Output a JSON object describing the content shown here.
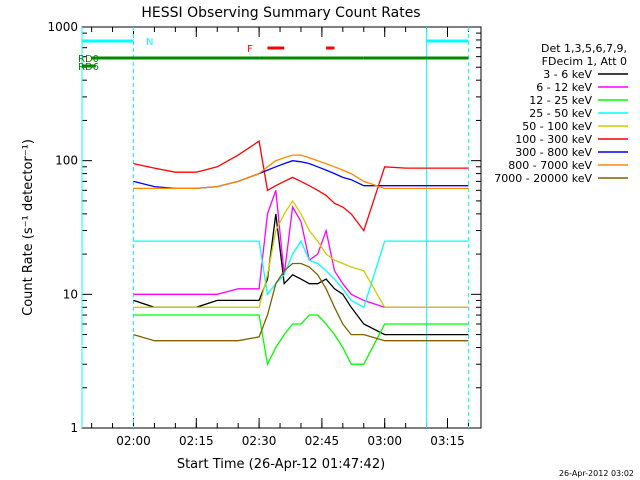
{
  "chart_data": {
    "type": "line",
    "title": "HESSI Observing Summary Count Rates",
    "xlabel": "Start Time (26-Apr-12 01:47:42)",
    "ylabel": "Count Rate (s⁻¹ detector⁻¹)",
    "yscale": "log",
    "ylim": [
      1,
      1000
    ],
    "xlim": [
      "01:47:42",
      "03:23:00"
    ],
    "x_ticks": [
      "02:00",
      "02:15",
      "02:30",
      "02:45",
      "03:00",
      "03:15"
    ],
    "y_ticks": [
      "1",
      "10",
      "100",
      "1000"
    ],
    "grid": false,
    "legend_position": "right",
    "legend_header": [
      "Det 1,3,5,6,7,9,",
      "FDecim 1, Att 0"
    ],
    "timestamp": "26-Apr-2012 03:02",
    "time_points": [
      "02:00",
      "02:05",
      "02:10",
      "02:15",
      "02:20",
      "02:25",
      "02:30",
      "02:32",
      "02:34",
      "02:36",
      "02:38",
      "02:40",
      "02:42",
      "02:44",
      "02:46",
      "02:48",
      "02:50",
      "02:52",
      "02:55",
      "03:00",
      "03:05",
      "03:10",
      "03:15",
      "03:20"
    ],
    "data_gaps": [
      [
        "01:47:42",
        "02:00"
      ],
      [
        "03:10",
        "03:20"
      ]
    ],
    "series": [
      {
        "name": "3 - 6 keV",
        "color": "#000000",
        "values": [
          9,
          8,
          8,
          8,
          9,
          9,
          9,
          13,
          40,
          12,
          14,
          13,
          12,
          12,
          13,
          11,
          10,
          8,
          6,
          5,
          5,
          5,
          5,
          5
        ]
      },
      {
        "name": "6 - 12 keV",
        "color": "#ff00ff",
        "values": [
          10,
          10,
          10,
          10,
          10,
          11,
          11,
          40,
          60,
          14,
          45,
          35,
          18,
          20,
          30,
          15,
          12,
          10,
          9,
          8,
          8,
          8,
          8,
          8
        ]
      },
      {
        "name": "12 - 25 keV",
        "color": "#00ff00",
        "values": [
          7,
          7,
          7,
          7,
          7,
          7,
          7,
          3,
          4,
          5,
          6,
          6,
          7,
          7,
          6,
          5,
          4,
          3,
          3,
          6,
          6,
          6,
          6,
          6
        ]
      },
      {
        "name": "25 - 50 keV",
        "color": "#00ffff",
        "values": [
          25,
          25,
          25,
          25,
          25,
          25,
          25,
          10,
          12,
          14,
          20,
          25,
          18,
          17,
          15,
          13,
          11,
          9,
          8,
          25,
          25,
          25,
          25,
          25
        ]
      },
      {
        "name": "50 - 100 keV",
        "color": "#cccc00",
        "values": [
          8,
          8,
          8,
          8,
          8,
          8,
          8,
          14,
          30,
          40,
          50,
          40,
          30,
          25,
          20,
          18,
          17,
          16,
          15,
          8,
          8,
          8,
          8,
          8
        ]
      },
      {
        "name": "100 - 300 keV",
        "color": "#ff0000",
        "values": [
          95,
          88,
          82,
          82,
          90,
          110,
          140,
          60,
          65,
          70,
          75,
          70,
          65,
          60,
          55,
          48,
          45,
          40,
          30,
          90,
          88,
          88,
          88,
          88
        ]
      },
      {
        "name": "300 - 800 keV",
        "color": "#0000ff",
        "values": [
          70,
          64,
          62,
          62,
          64,
          70,
          80,
          85,
          90,
          95,
          100,
          98,
          95,
          90,
          85,
          80,
          75,
          72,
          65,
          65,
          65,
          65,
          65,
          65
        ]
      },
      {
        "name": "800 - 7000 keV",
        "color": "#ff8800",
        "values": [
          62,
          62,
          62,
          62,
          64,
          70,
          80,
          90,
          100,
          105,
          110,
          110,
          105,
          100,
          95,
          90,
          85,
          80,
          70,
          62,
          62,
          62,
          62,
          62
        ]
      },
      {
        "name": "7000 - 20000 keV",
        "color": "#806000",
        "values": [
          5,
          4.5,
          4.5,
          4.5,
          4.5,
          4.5,
          4.8,
          7,
          12,
          15,
          17,
          17,
          16,
          14,
          11,
          8,
          6,
          5,
          5,
          4.5,
          4.5,
          4.5,
          4.5,
          4.5
        ]
      }
    ],
    "flags": [
      {
        "name": "N",
        "color": "#00ffff",
        "segments": [
          [
            "01:47:42",
            "02:00"
          ],
          [
            "03:10",
            "03:20"
          ]
        ]
      },
      {
        "name": "F",
        "color": "#ff0000",
        "segments": [
          [
            "02:32",
            "02:36"
          ],
          [
            "02:46",
            "02:48"
          ]
        ]
      },
      {
        "name": "RD0",
        "color": "#008800",
        "segments": [
          [
            "01:50",
            "02:30"
          ],
          [
            "02:30",
            "02:55"
          ],
          [
            "02:55",
            "03:10"
          ],
          [
            "03:10",
            "03:20"
          ]
        ]
      },
      {
        "name": "RD6",
        "color": "#008800",
        "segments": [
          [
            "01:47:42",
            "01:51"
          ]
        ]
      }
    ]
  }
}
